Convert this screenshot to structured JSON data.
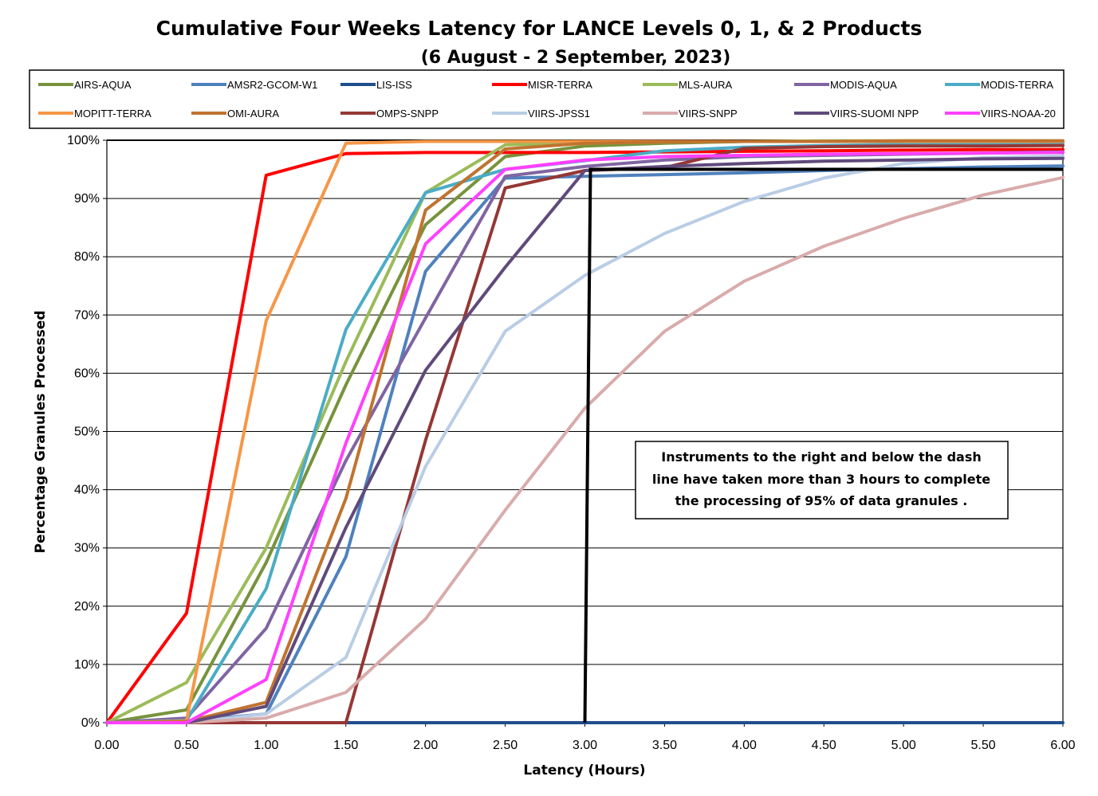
{
  "chart_data": {
    "type": "line",
    "title": "Cumulative Four Weeks Latency  for LANCE Levels 0, 1, & 2 Products",
    "subtitle": "(6  August   -  2  September,  2023)",
    "xlabel": "Latency (Hours)",
    "ylabel": "Percentage Granules Processed",
    "x": [
      0.0,
      0.5,
      1.0,
      1.5,
      2.0,
      2.5,
      3.0,
      3.5,
      4.0,
      4.5,
      5.0,
      5.5,
      6.0
    ],
    "x_tick_labels": [
      "0.00",
      "0.50",
      "1.00",
      "1.50",
      "2.00",
      "2.50",
      "3.00",
      "3.50",
      "4.00",
      "4.50",
      "5.00",
      "5.50",
      "6.00"
    ],
    "y_tick_labels": [
      "0%",
      "10%",
      "20%",
      "30%",
      "40%",
      "50%",
      "60%",
      "70%",
      "80%",
      "90%",
      "100%"
    ],
    "xlim": [
      0,
      6
    ],
    "ylim": [
      0,
      100
    ],
    "grid": "horizontal",
    "legend_position": "top",
    "series": [
      {
        "name": "AIRS-AQUA",
        "color": "#77933C",
        "values": [
          0,
          2.2,
          27.5,
          58,
          85.5,
          97.2,
          99,
          99.5,
          99.8,
          99.8,
          99.8,
          99.8,
          99.8
        ]
      },
      {
        "name": "AMSR2-GCOM-W1",
        "color": "#4F81BD",
        "values": [
          0,
          0.3,
          1.5,
          28.5,
          77.5,
          93.5,
          93.8,
          94.1,
          94.4,
          94.8,
          95.1,
          95.4,
          95.6
        ]
      },
      {
        "name": "LIS-ISS",
        "color": "#1F4E8C",
        "values": [
          0,
          0,
          0,
          0,
          0,
          0,
          0,
          0,
          0,
          0,
          0,
          0,
          0
        ]
      },
      {
        "name": "MISR-TERRA",
        "color": "#FF0000",
        "values": [
          0,
          18.8,
          94,
          97.7,
          97.9,
          97.9,
          97.9,
          98.0,
          98.1,
          98.2,
          98.3,
          98.4,
          98.4
        ]
      },
      {
        "name": "MLS-AURA",
        "color": "#9BBB59",
        "values": [
          0,
          6.9,
          30,
          62,
          91,
          99.2,
          99.5,
          99.7,
          99.8,
          99.9,
          99.9,
          99.9,
          99.9
        ]
      },
      {
        "name": "MODIS-AQUA",
        "color": "#8064A2",
        "values": [
          0,
          0.8,
          16.2,
          45,
          69.5,
          93.8,
          95.5,
          96.6,
          97.2,
          97.4,
          97.6,
          97.8,
          98.0
        ]
      },
      {
        "name": "MODIS-TERRA",
        "color": "#4BACC6",
        "values": [
          0,
          0.4,
          23,
          67.5,
          91,
          95,
          96.5,
          98.2,
          98.8,
          99.1,
          99.3,
          99.4,
          99.5
        ]
      },
      {
        "name": "MOPITT-TERRA",
        "color": "#F79646",
        "values": [
          0,
          0.3,
          69,
          99.5,
          99.8,
          99.8,
          99.8,
          99.8,
          99.8,
          99.8,
          99.8,
          99.8,
          99.8
        ]
      },
      {
        "name": "OMI-AURA",
        "color": "#C0732F",
        "values": [
          0,
          0.2,
          3.5,
          38.5,
          88,
          98.5,
          99.5,
          99.7,
          99.8,
          99.8,
          99.9,
          99.9,
          99.9
        ]
      },
      {
        "name": "OMPS-SNPP",
        "color": "#953735",
        "values": [
          0,
          0,
          0,
          0,
          48.5,
          91.8,
          94.8,
          95.3,
          98.6,
          98.9,
          99.0,
          99.0,
          99.1
        ]
      },
      {
        "name": "VIIRS-JPSS1",
        "color": "#B9CDE5",
        "values": [
          0,
          0,
          1.5,
          11.2,
          44,
          67.2,
          76.8,
          84,
          89.5,
          93.5,
          96,
          97,
          97.3
        ]
      },
      {
        "name": "VIIRS-SNPP",
        "color": "#D9ABAB",
        "values": [
          0,
          0,
          0.8,
          5.2,
          17.8,
          36.5,
          54,
          67.2,
          75.8,
          81.8,
          86.6,
          90.6,
          93.6
        ]
      },
      {
        "name": "VIIRS-SUOMI NPP",
        "color": "#604A7B",
        "values": [
          0,
          0,
          2.8,
          33.5,
          60.5,
          78.2,
          94.8,
          95.5,
          96.0,
          96.4,
          96.6,
          96.8,
          96.9
        ]
      },
      {
        "name": "VIIRS-NOAA-20",
        "color": "#FF40FF",
        "values": [
          0,
          0,
          7.4,
          48,
          82.2,
          95,
          96.6,
          97.2,
          97.4,
          97.6,
          97.7,
          97.8,
          97.9
        ]
      }
    ],
    "reference_lines": {
      "threshold_percent": 95,
      "threshold_hours": 3.0
    },
    "annotation": [
      "Instruments to the right and below the dash",
      "line have taken more than 3 hours to complete",
      "the processing of 95% of data granules ."
    ]
  }
}
